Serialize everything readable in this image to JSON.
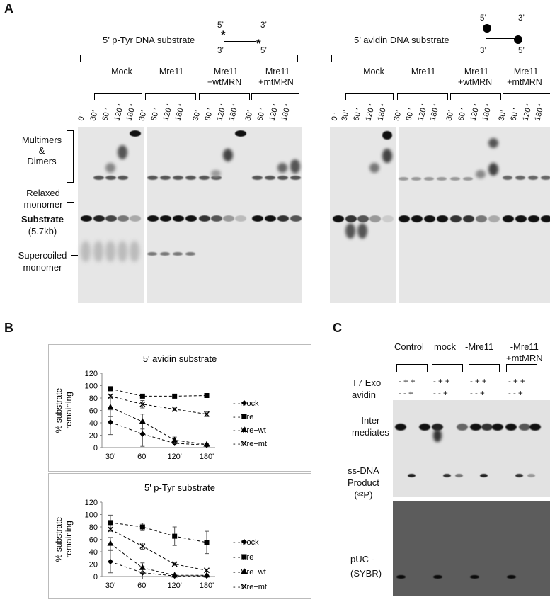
{
  "panel_a": {
    "letter": "A",
    "left_title": "5’ p-Tyr DNA substrate",
    "right_title": "5’ avidin  DNA substrate",
    "strand_5": "5’",
    "strand_3": "3’",
    "conditions": [
      "Mock",
      "-Mre11",
      "-Mre11\n+wtMRN",
      "-Mre11\n+mtMRN"
    ],
    "cond_mock": "Mock",
    "cond_mre": "-Mre11",
    "cond_wt_1": "-Mre11",
    "cond_wt_2": "+wtMRN",
    "cond_mt_1": "-Mre11",
    "cond_mt_2": "+mtMRN",
    "time_zero": "0 ‘",
    "times": [
      "30’",
      "60 ’",
      "120 ’",
      "180 ‘"
    ],
    "side_labels": {
      "multimers": "Multimers",
      "amp": "&",
      "dimers": "Dimers",
      "relaxed_1": "Relaxed",
      "relaxed_2": "monomer",
      "substrate": "Substrate",
      "substrate_size": "(5.7kb)",
      "supercoiled_1": "Supercoiled",
      "supercoiled_2": "monomer"
    }
  },
  "panel_b": {
    "letter": "B",
    "legend": [
      "- -mock",
      "- -Mre",
      "- -Mre+wt",
      "- -Mre+mt"
    ],
    "ylabel_1": "% substrate",
    "ylabel_2": "remaining",
    "chart_data": [
      {
        "type": "line",
        "title": "5' avidin substrate",
        "x": [
          "30'",
          "60'",
          "120'",
          "180'"
        ],
        "ylim": [
          0,
          120
        ],
        "yticks": [
          "0",
          "20",
          "40",
          "60",
          "80",
          "100",
          "120"
        ],
        "series": [
          {
            "name": "mock",
            "marker": "diamond",
            "values": [
              41,
              22,
              7,
              4
            ]
          },
          {
            "name": "Mre",
            "marker": "square",
            "values": [
              95,
              83,
              83,
              84
            ]
          },
          {
            "name": "Mre+wt",
            "marker": "triangle",
            "values": [
              65,
              42,
              12,
              5
            ]
          },
          {
            "name": "Mre+mt",
            "marker": "x",
            "values": [
              83,
              70,
              62,
              54
            ]
          }
        ]
      },
      {
        "type": "line",
        "title": "5' p-Tyr substrate",
        "x": [
          "30'",
          "60'",
          "120'",
          "180'"
        ],
        "ylim": [
          0,
          120
        ],
        "yticks": [
          "0",
          "20",
          "40",
          "60",
          "80",
          "100",
          "120"
        ],
        "series": [
          {
            "name": "mock",
            "marker": "diamond",
            "values": [
              24,
              6,
              1,
              1
            ]
          },
          {
            "name": "Mre",
            "marker": "square",
            "values": [
              87,
              80,
              65,
              55
            ]
          },
          {
            "name": "Mre+wt",
            "marker": "triangle",
            "values": [
              53,
              14,
              2,
              2
            ]
          },
          {
            "name": "Mre+mt",
            "marker": "x",
            "values": [
              76,
              49,
              20,
              10
            ]
          }
        ]
      }
    ]
  },
  "panel_c": {
    "letter": "C",
    "conds": {
      "control": "Control",
      "mock": "mock",
      "mre": "-Mre11",
      "mt1": "-Mre11",
      "mt2": "+mtMRN"
    },
    "row_t7": "T7 Exo",
    "row_avidin": "avidin",
    "t7_signs": "- + +",
    "avidin_signs": "- - +",
    "inter_1": "Inter",
    "inter_2": "mediates",
    "ss_1": "ss-DNA",
    "ss_2": "Product",
    "ss_3": "(³²P)",
    "puc_1": "pUC -",
    "puc_2": "(SYBR)"
  }
}
